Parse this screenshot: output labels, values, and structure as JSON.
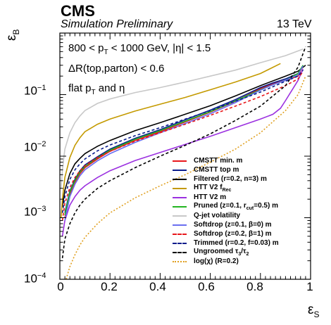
{
  "header": {
    "experiment": "CMS",
    "status": "Simulation Preliminary",
    "energy": "13 TeV"
  },
  "annotations": {
    "line1_a": "800 < p",
    "line1_sub": "T",
    "line1_b": " < 1000 GeV, |η| < 1.5",
    "line2": "ΔR(top,parton) < 0.6",
    "line3_a": "flat p",
    "line3_sub": "T",
    "line3_b": " and η"
  },
  "chart_data": {
    "type": "line",
    "xlabel": "ε",
    "xlabel_sub": "S",
    "ylabel": "ε",
    "ylabel_sub": "B",
    "xlim": [
      0,
      1
    ],
    "ylim": [
      0.0001,
      1
    ],
    "yscale": "log",
    "xticks": [
      "0",
      "0.2",
      "0.4",
      "0.6",
      "0.8",
      "1"
    ],
    "yticks": [
      {
        "base": "10",
        "exp": "−4"
      },
      {
        "base": "10",
        "exp": "−3"
      },
      {
        "base": "10",
        "exp": "−2"
      },
      {
        "base": "10",
        "exp": "−1"
      }
    ],
    "legend_position": "bottom-right",
    "series": [
      {
        "name": "CMSTT min. m",
        "color": "#e8161b",
        "dash": "solid",
        "x": [
          0.02,
          0.04,
          0.06,
          0.08,
          0.1,
          0.15,
          0.2,
          0.3,
          0.4,
          0.5,
          0.6,
          0.7,
          0.8,
          0.85,
          0.9,
          0.95,
          0.97
        ],
        "y": [
          0.001,
          0.0024,
          0.0038,
          0.0052,
          0.0065,
          0.009,
          0.012,
          0.018,
          0.025,
          0.036,
          0.052,
          0.078,
          0.125,
          0.15,
          0.17,
          0.2,
          0.29
        ]
      },
      {
        "name": "CMSTT top m",
        "color": "#0a1c8c",
        "dash": "solid",
        "x": [
          0.02,
          0.04,
          0.06,
          0.08,
          0.1,
          0.15,
          0.2,
          0.3,
          0.4,
          0.5,
          0.6,
          0.7,
          0.8,
          0.85,
          0.9,
          0.95,
          0.97
        ],
        "y": [
          0.0012,
          0.0027,
          0.0042,
          0.0058,
          0.0072,
          0.0098,
          0.013,
          0.0195,
          0.027,
          0.039,
          0.056,
          0.083,
          0.13,
          0.155,
          0.18,
          0.22,
          0.3
        ]
      },
      {
        "name": "Filtered (r=0.2, n=3) m",
        "color": "#000000",
        "dash": "solid",
        "x": [
          0.01,
          0.02,
          0.04,
          0.06,
          0.08,
          0.1,
          0.15,
          0.2,
          0.3,
          0.4,
          0.5,
          0.6,
          0.7,
          0.8,
          0.9,
          0.95,
          0.98
        ],
        "y": [
          0.0015,
          0.0028,
          0.0052,
          0.0075,
          0.0092,
          0.011,
          0.0145,
          0.018,
          0.026,
          0.035,
          0.048,
          0.066,
          0.095,
          0.14,
          0.2,
          0.24,
          0.3
        ]
      },
      {
        "name": "HTT V2 f",
        "name_sub": "Rec",
        "color": "#c49a00",
        "dash": "solid",
        "x": [
          0.005,
          0.01,
          0.02,
          0.04,
          0.06,
          0.08,
          0.1,
          0.15,
          0.2,
          0.3,
          0.4,
          0.5,
          0.6,
          0.7,
          0.8,
          0.88
        ],
        "y": [
          0.001,
          0.002,
          0.0045,
          0.0095,
          0.015,
          0.02,
          0.025,
          0.033,
          0.04,
          0.054,
          0.07,
          0.09,
          0.12,
          0.16,
          0.22,
          0.32
        ]
      },
      {
        "name": "HTT V2 m",
        "color": "#9b30e0",
        "dash": "solid",
        "x": [
          0.01,
          0.02,
          0.04,
          0.06,
          0.08,
          0.1,
          0.15,
          0.2,
          0.3,
          0.4,
          0.5,
          0.6,
          0.7,
          0.8,
          0.85,
          0.88,
          0.9,
          0.95,
          0.97
        ],
        "y": [
          0.0005,
          0.0009,
          0.0016,
          0.0022,
          0.0028,
          0.0033,
          0.0045,
          0.0058,
          0.0085,
          0.0115,
          0.0155,
          0.021,
          0.029,
          0.04,
          0.048,
          0.06,
          0.08,
          0.17,
          0.26
        ]
      },
      {
        "name": "Pruned (z=0.1, r",
        "name_sub": "cut",
        "name_tail": "=0.5) m",
        "color": "#22b520",
        "dash": "solid",
        "x": [
          0.02,
          0.04,
          0.06,
          0.08,
          0.1,
          0.15,
          0.2,
          0.3,
          0.4,
          0.5,
          0.6,
          0.7,
          0.8,
          0.85,
          0.9,
          0.95,
          0.97
        ],
        "y": [
          0.0011,
          0.0026,
          0.004,
          0.0055,
          0.0068,
          0.0094,
          0.0125,
          0.0188,
          0.026,
          0.037,
          0.053,
          0.079,
          0.12,
          0.145,
          0.17,
          0.22,
          0.3
        ]
      },
      {
        "name": "Q-jet volatility",
        "color": "#c8c8c8",
        "dash": "solid",
        "x": [
          0.005,
          0.01,
          0.02,
          0.04,
          0.06,
          0.08,
          0.1,
          0.15,
          0.2,
          0.3,
          0.4,
          0.5,
          0.6,
          0.7,
          0.8,
          0.9,
          0.97
        ],
        "y": [
          0.003,
          0.006,
          0.013,
          0.024,
          0.035,
          0.045,
          0.055,
          0.072,
          0.085,
          0.108,
          0.13,
          0.16,
          0.2,
          0.25,
          0.33,
          0.43,
          0.55
        ]
      },
      {
        "name": "Softdrop (z=0.1, β=0) m",
        "color": "#6a6ef0",
        "dash": "solid",
        "x": [
          0.02,
          0.04,
          0.06,
          0.08,
          0.1,
          0.15,
          0.2,
          0.3,
          0.4,
          0.5,
          0.6,
          0.7,
          0.8,
          0.85,
          0.9,
          0.95,
          0.97
        ],
        "y": [
          0.0009,
          0.0022,
          0.0035,
          0.0048,
          0.006,
          0.0084,
          0.011,
          0.0167,
          0.024,
          0.034,
          0.049,
          0.074,
          0.118,
          0.145,
          0.17,
          0.21,
          0.29
        ]
      },
      {
        "name": "Softdrop (z=0.2, β=1) m",
        "color": "#e8161b",
        "dash": "dashed",
        "x": [
          0.01,
          0.02,
          0.04,
          0.06,
          0.08,
          0.1,
          0.15,
          0.2,
          0.3,
          0.4,
          0.5,
          0.6,
          0.7,
          0.8,
          0.9,
          0.95,
          0.97
        ],
        "y": [
          0.0009,
          0.0017,
          0.0031,
          0.0045,
          0.0058,
          0.007,
          0.0095,
          0.012,
          0.0175,
          0.024,
          0.033,
          0.046,
          0.065,
          0.093,
          0.14,
          0.18,
          0.24
        ]
      },
      {
        "name": "Trimmed (r=0.2, f=0.03) m",
        "color": "#0a1c8c",
        "dash": "dashed",
        "x": [
          0.01,
          0.02,
          0.04,
          0.06,
          0.08,
          0.1,
          0.15,
          0.2,
          0.3,
          0.4,
          0.5,
          0.6,
          0.7,
          0.8,
          0.9,
          0.95,
          0.97
        ],
        "y": [
          0.0012,
          0.0022,
          0.0042,
          0.006,
          0.0075,
          0.009,
          0.0122,
          0.0152,
          0.0215,
          0.029,
          0.04,
          0.055,
          0.078,
          0.11,
          0.165,
          0.2,
          0.25
        ]
      },
      {
        "name": "Ungroomed τ",
        "name_sub": "3",
        "name_tail": "/τ",
        "name_sub2": "2",
        "color": "#000000",
        "dash": "dashed",
        "x": [
          0.01,
          0.02,
          0.04,
          0.06,
          0.08,
          0.1,
          0.15,
          0.2,
          0.3,
          0.4,
          0.5,
          0.6,
          0.7,
          0.8,
          0.9,
          0.95,
          0.98
        ],
        "y": [
          0.00022,
          0.00045,
          0.0008,
          0.0012,
          0.0016,
          0.002,
          0.003,
          0.004,
          0.0065,
          0.01,
          0.015,
          0.023,
          0.038,
          0.065,
          0.14,
          0.28,
          0.6
        ]
      },
      {
        "name": "log(χ) (R=0.2)",
        "color": "#e0a020",
        "dash": "dotted",
        "x": [
          0.025,
          0.04,
          0.06,
          0.08,
          0.1,
          0.15,
          0.2,
          0.3,
          0.4,
          0.5,
          0.6,
          0.7,
          0.8,
          0.9,
          0.95,
          0.98
        ],
        "y": [
          0.0001,
          0.00016,
          0.00025,
          0.00036,
          0.00048,
          0.0008,
          0.0012,
          0.0021,
          0.0033,
          0.005,
          0.008,
          0.013,
          0.024,
          0.055,
          0.1,
          0.2
        ]
      }
    ]
  }
}
